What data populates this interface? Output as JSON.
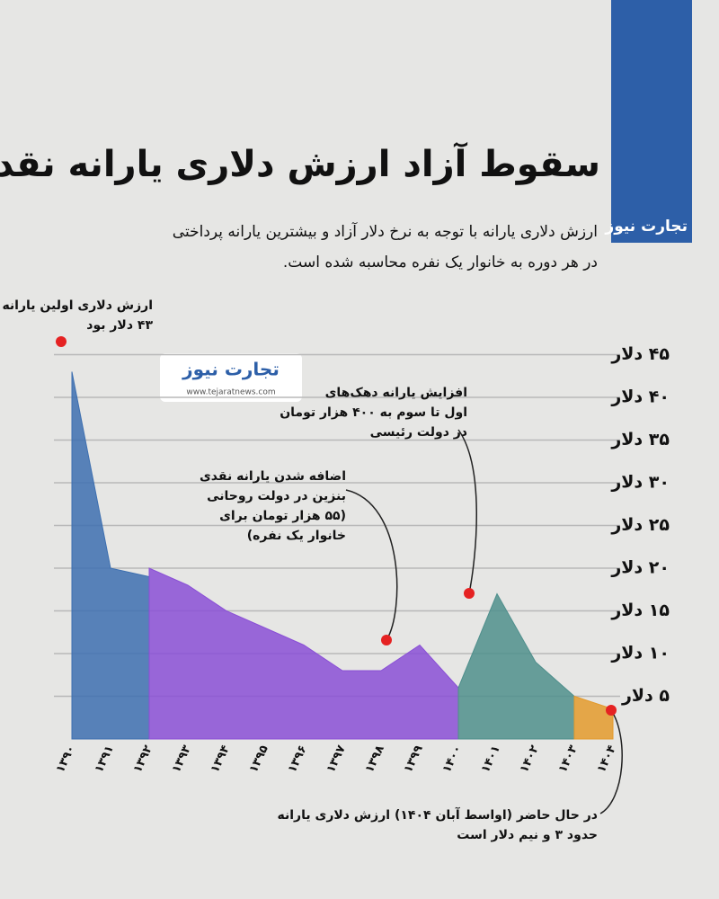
{
  "brand": "تجارت نیوز",
  "website": "www.tejaratnews.com",
  "chart_data": {
    "type": "area",
    "title": "سقوط آزاد ارزش دلاری یارانه نقدی",
    "subtitle": [
      "ارزش دلاری یارانه با توجه به نرخ دلار آزاد و بیشترین یارانه پرداختی",
      "در هر دوره به خانوار یک نفره محاسبه شده است."
    ],
    "categories": [
      "۱۳۹۰",
      "۱۳۹۱",
      "۱۳۹۲",
      "۱۳۹۳",
      "۱۳۹۴",
      "۱۳۹۵",
      "۱۳۹۶",
      "۱۳۹۷",
      "۱۳۹۸",
      "۱۳۹۹",
      "۱۴۰۰",
      "۱۴۰۱",
      "۱۴۰۲",
      "۱۴۰۳",
      "۱۴۰۴"
    ],
    "series": [
      {
        "color": "#3d6fb0",
        "values": [
          43,
          20,
          19,
          null,
          null,
          null,
          null,
          null,
          null,
          null,
          null,
          null,
          null,
          null,
          null
        ]
      },
      {
        "color": "#8a4fd6",
        "values": [
          null,
          null,
          20,
          18,
          15,
          13,
          11,
          8,
          8,
          11,
          6,
          null,
          null,
          null,
          null
        ]
      },
      {
        "color": "#4f8f8c",
        "values": [
          null,
          null,
          null,
          null,
          null,
          null,
          null,
          null,
          null,
          null,
          6,
          17,
          9,
          5,
          null
        ]
      },
      {
        "color": "#e39a2d",
        "values": [
          null,
          null,
          null,
          null,
          null,
          null,
          null,
          null,
          null,
          null,
          null,
          null,
          null,
          5,
          3.5
        ]
      }
    ],
    "ylim": [
      0,
      50
    ],
    "yticks": [
      {
        "value": 5,
        "label": "۵ دلار"
      },
      {
        "value": 10,
        "label": "۱۰ دلار"
      },
      {
        "value": 15,
        "label": "۱۵ دلار"
      },
      {
        "value": 20,
        "label": "۲۰ دلار"
      },
      {
        "value": 25,
        "label": "۲۵ دلار"
      },
      {
        "value": 30,
        "label": "۳۰ دلار"
      },
      {
        "value": 35,
        "label": "۳۵ دلار"
      },
      {
        "value": 40,
        "label": "۴۰ دلار"
      },
      {
        "value": 45,
        "label": "۴۵ دلار"
      }
    ],
    "grid": true,
    "annotations": [
      [
        "ارزش دلاری اولین یارانه",
        "۴۳ دلار بود"
      ],
      [
        "اضافه شدن یارانه نقدی",
        "بنزین در دولت روحانی",
        "(۵۵ هزار تومان برای",
        "خانوار یک نفره)"
      ],
      [
        "افزایش یارانه دهک‌های",
        "اول تا سوم به ۴۰۰ هزار تومان",
        "در دولت رئیسی"
      ],
      [
        "در حال حاضر (اواسط آبان ۱۴۰۴) ارزش دلاری یارانه",
        "حدود ۳ و نیم دلار است"
      ]
    ]
  }
}
